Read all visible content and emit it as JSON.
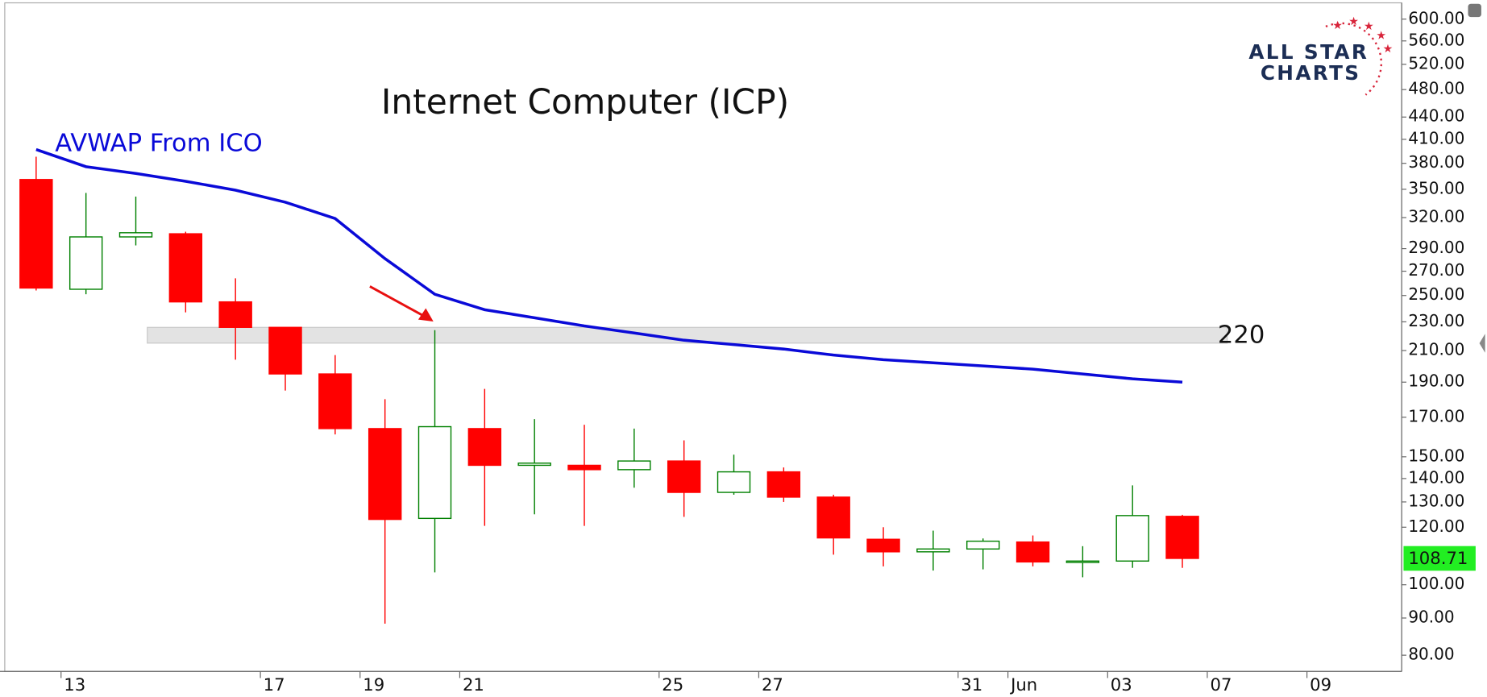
{
  "chart_data": {
    "type": "candlestick",
    "title": "Internet Computer (ICP)",
    "log_scale": true,
    "grid": false,
    "up_color": "#008000",
    "down_color": "#ff0000",
    "open": [
      361,
      255,
      301,
      304,
      245,
      226,
      195,
      164,
      123.4,
      164,
      146,
      146,
      144,
      148,
      134,
      143,
      132,
      115.5,
      111,
      112,
      114.5,
      107.5,
      107.8,
      124.2
    ],
    "high": [
      388,
      346,
      342,
      306,
      264,
      226,
      207,
      180,
      224,
      186,
      169,
      166,
      164,
      158,
      151,
      145,
      133,
      120,
      118.7,
      115.8,
      116.9,
      113,
      137,
      124.8
    ],
    "low": [
      254,
      251,
      293,
      237,
      204,
      185,
      161,
      88.4,
      104,
      120.5,
      125,
      120.5,
      136,
      124,
      133,
      130,
      110,
      106,
      104.6,
      105,
      106,
      102.4,
      105.5,
      105.5
    ],
    "close": [
      256,
      301,
      305,
      245,
      226,
      195,
      164,
      123,
      165,
      146,
      147,
      144,
      148,
      134,
      143,
      132,
      116,
      111,
      112,
      114.8,
      107.5,
      107.8,
      124.5,
      108.71
    ],
    "overlay": {
      "name": "AVWAP From ICO",
      "color": "#0a0ad8",
      "values": [
        397,
        376,
        368,
        359,
        349,
        336,
        319,
        281,
        251,
        239,
        233,
        227,
        222,
        217,
        214,
        211,
        207,
        204,
        202,
        200,
        198,
        195,
        192,
        190
      ]
    },
    "zone": {
      "low": 215,
      "high": 226,
      "label": "220",
      "value": 220
    },
    "last_price": 108.71,
    "last_price_color": "#22ee22",
    "xlim": [
      -0.63,
      27.4
    ],
    "xticks": [
      {
        "value": 1,
        "label": "13"
      },
      {
        "value": 5,
        "label": "17"
      },
      {
        "value": 7,
        "label": "19"
      },
      {
        "value": 9,
        "label": "21"
      },
      {
        "value": 13,
        "label": "25"
      },
      {
        "value": 15,
        "label": "27"
      },
      {
        "value": 19,
        "label": "31"
      },
      {
        "value": 20,
        "label": "Jun"
      },
      {
        "value": 22,
        "label": "03"
      },
      {
        "value": 24,
        "label": "07"
      },
      {
        "value": 26,
        "label": "09"
      }
    ],
    "ylim": [
      76,
      628
    ],
    "yticks": [
      {
        "value": 80,
        "label": "80.00"
      },
      {
        "value": 90,
        "label": "90.00"
      },
      {
        "value": 100,
        "label": "100.00"
      },
      {
        "value": 120,
        "label": "120.00"
      },
      {
        "value": 130,
        "label": "130.00"
      },
      {
        "value": 140,
        "label": "140.00"
      },
      {
        "value": 150,
        "label": "150.00"
      },
      {
        "value": 170,
        "label": "170.00"
      },
      {
        "value": 190,
        "label": "190.00"
      },
      {
        "value": 210,
        "label": "210.00"
      },
      {
        "value": 230,
        "label": "230.00"
      },
      {
        "value": 250,
        "label": "250.00"
      },
      {
        "value": 270,
        "label": "270.00"
      },
      {
        "value": 290,
        "label": "290.00"
      },
      {
        "value": 320,
        "label": "320.00"
      },
      {
        "value": 350,
        "label": "350.00"
      },
      {
        "value": 380,
        "label": "380.00"
      },
      {
        "value": 410,
        "label": "410.00"
      },
      {
        "value": 440,
        "label": "440.00"
      },
      {
        "value": 480,
        "label": "480.00"
      },
      {
        "value": 520,
        "label": "520.00"
      },
      {
        "value": 560,
        "label": "560.00"
      },
      {
        "value": 600,
        "label": "600.00"
      }
    ]
  },
  "logo": {
    "line1": "ALL STAR",
    "line2": "CHARTS"
  }
}
